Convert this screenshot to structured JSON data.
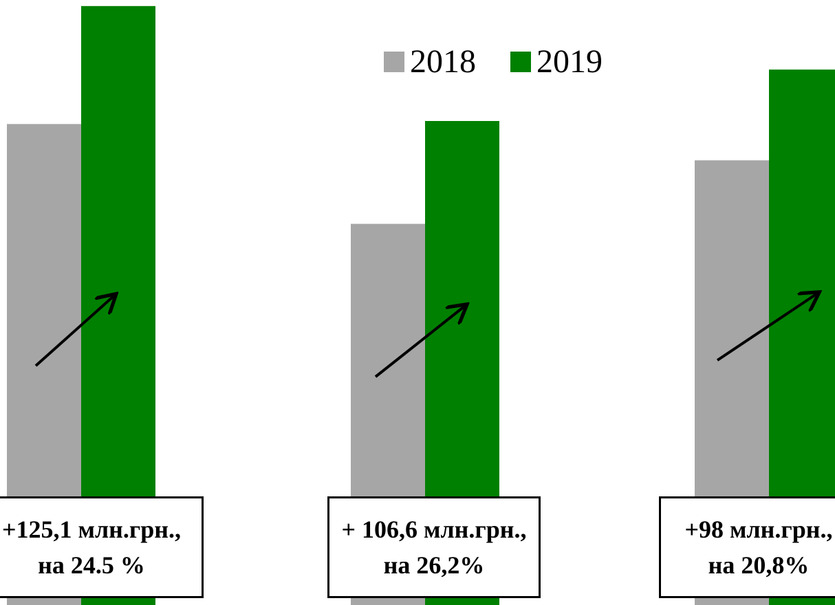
{
  "chart_data": {
    "type": "bar",
    "categories": [
      "",
      "",
      ""
    ],
    "series": [
      {
        "name": "2018",
        "color": "#a6a6a6",
        "values": [
          0.795,
          0.63,
          0.735
        ]
      },
      {
        "name": "2019",
        "color": "#008000",
        "values": [
          0.99,
          0.8,
          0.885
        ]
      }
    ],
    "ylim": [
      0,
      1
    ],
    "grid": false,
    "legend_position": "top",
    "annotations": [
      {
        "line1": "+125,1 млн.грн.,",
        "line2": "на 24.5 %"
      },
      {
        "line1": "+ 106,6 млн.грн.,",
        "line2": "на 26,2%"
      },
      {
        "line1": "+98 млн.грн.,",
        "line2": "на 20,8%"
      }
    ],
    "trend_arrow": "up-right"
  }
}
